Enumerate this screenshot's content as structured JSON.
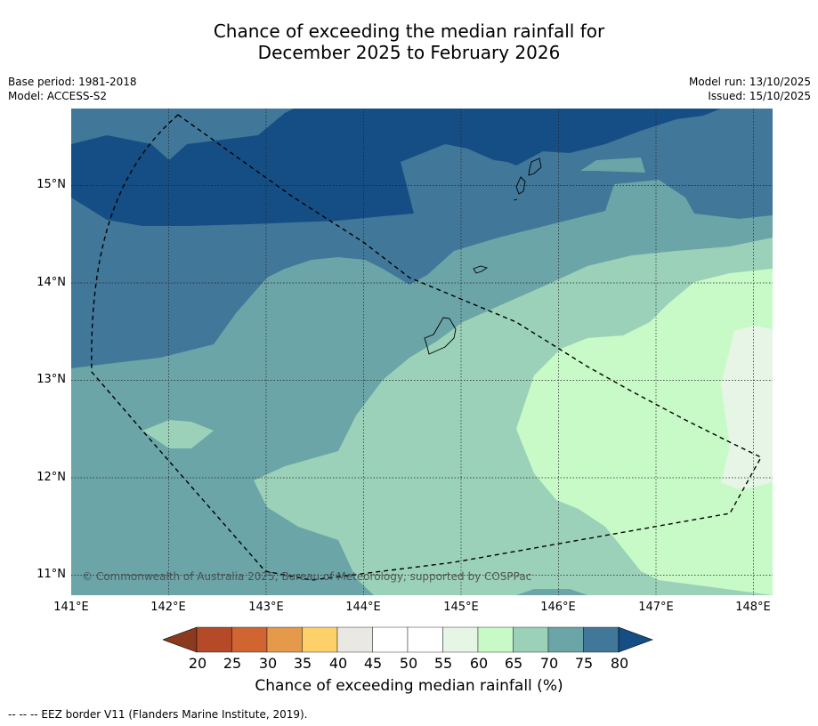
{
  "header": {
    "title_line1": "Chance of exceeding the median rainfall for",
    "title_line2": "December 2025 to February 2026",
    "base_period": "Base period: 1981-2018",
    "model": "Model: ACCESS-S2",
    "model_run": "Model run: 13/10/2025",
    "issued": "Issued: 15/10/2025"
  },
  "map": {
    "lat_labels": [
      "15°N",
      "14°N",
      "13°N",
      "12°N",
      "11°N"
    ],
    "lon_labels": [
      "141°E",
      "142°E",
      "143°E",
      "144°E",
      "145°E",
      "146°E",
      "147°E",
      "148°E"
    ],
    "copyright": "© Commonwealth of Australia 2025, Bureau of Meteorology, supported by COSPPac"
  },
  "colorbar": {
    "tick_labels": [
      "20",
      "25",
      "30",
      "35",
      "40",
      "45",
      "50",
      "55",
      "60",
      "65",
      "70",
      "75",
      "80"
    ],
    "title": "Chance of exceeding median rainfall (%)",
    "colors": [
      "#8c3a1e",
      "#b44a27",
      "#d06532",
      "#e49a4a",
      "#fdd06a",
      "#e9e8e2",
      "#ffffff",
      "#ffffff",
      "#e6f5e6",
      "#c8fac8",
      "#9bd1b9",
      "#6ba5a8",
      "#417799",
      "#154e85"
    ]
  },
  "legend": {
    "footer": "--  --  -- EEZ border V11 (Flanders Marine Institute, 2019)."
  }
}
